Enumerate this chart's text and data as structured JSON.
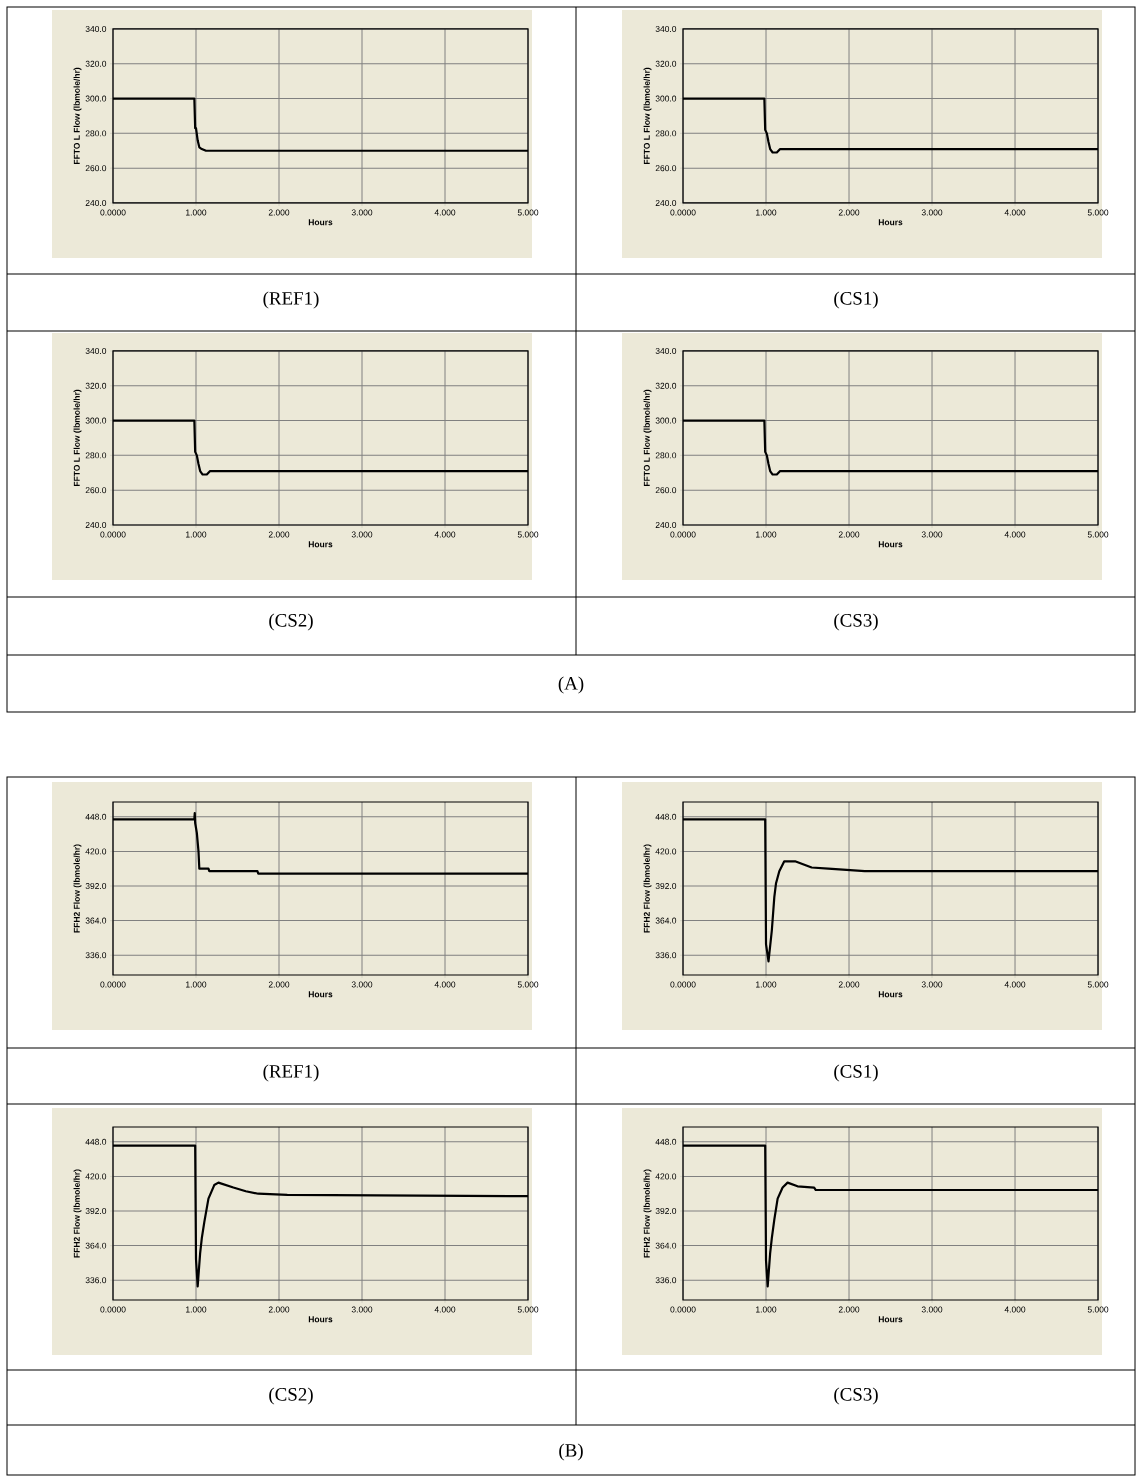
{
  "chart_data": [
    {
      "type": "line",
      "title": "(REF1)",
      "xlabel": "Hours",
      "ylabel": "FFTO L Flow (lbmole/hr)",
      "grid": true,
      "xlim": [
        0,
        5
      ],
      "ylim": [
        240,
        340
      ],
      "xticks": [
        {
          "value": 0,
          "label": "0.0000"
        },
        {
          "value": 1,
          "label": "1.000"
        },
        {
          "value": 2,
          "label": "2.000"
        },
        {
          "value": 3,
          "label": "3.000"
        },
        {
          "value": 4,
          "label": "4.000"
        },
        {
          "value": 5,
          "label": "5.000"
        }
      ],
      "yticks": [
        {
          "value": 240,
          "label": "240.0"
        },
        {
          "value": 260,
          "label": "260.0"
        },
        {
          "value": 280,
          "label": "280.0"
        },
        {
          "value": 300,
          "label": "300.0"
        },
        {
          "value": 320,
          "label": "320.0"
        },
        {
          "value": 340,
          "label": "340.0"
        }
      ],
      "series": [
        {
          "color": "#000000",
          "x": [
            0,
            0.98,
            0.99,
            1.0,
            1.02,
            1.04,
            1.07,
            1.12,
            5
          ],
          "values": [
            300,
            300,
            283,
            283,
            276,
            272,
            271,
            270,
            270
          ]
        }
      ]
    },
    {
      "type": "line",
      "title": "(CS1)",
      "xlabel": "Hours",
      "ylabel": "FFTO L Flow (lbmole/hr)",
      "grid": true,
      "xlim": [
        0,
        5
      ],
      "ylim": [
        240,
        340
      ],
      "xticks": [
        {
          "value": 0,
          "label": "0.0000"
        },
        {
          "value": 1,
          "label": "1.000"
        },
        {
          "value": 2,
          "label": "2.000"
        },
        {
          "value": 3,
          "label": "3.000"
        },
        {
          "value": 4,
          "label": "4.000"
        },
        {
          "value": 5,
          "label": "5.000"
        }
      ],
      "yticks": [
        {
          "value": 240,
          "label": "240.0"
        },
        {
          "value": 260,
          "label": "260.0"
        },
        {
          "value": 280,
          "label": "280.0"
        },
        {
          "value": 300,
          "label": "300.0"
        },
        {
          "value": 320,
          "label": "320.0"
        },
        {
          "value": 340,
          "label": "340.0"
        }
      ],
      "series": [
        {
          "color": "#000000",
          "x": [
            0,
            0.98,
            0.99,
            1.01,
            1.03,
            1.05,
            1.08,
            1.13,
            1.17,
            5
          ],
          "values": [
            300,
            300,
            282,
            280,
            275,
            271,
            269,
            269,
            271,
            271
          ]
        }
      ]
    },
    {
      "type": "line",
      "title": "(CS2)",
      "xlabel": "Hours",
      "ylabel": "FFTO L Flow (lbmole/hr)",
      "grid": true,
      "xlim": [
        0,
        5
      ],
      "ylim": [
        240,
        340
      ],
      "xticks": [
        {
          "value": 0,
          "label": "0.0000"
        },
        {
          "value": 1,
          "label": "1.000"
        },
        {
          "value": 2,
          "label": "2.000"
        },
        {
          "value": 3,
          "label": "3.000"
        },
        {
          "value": 4,
          "label": "4.000"
        },
        {
          "value": 5,
          "label": "5.000"
        }
      ],
      "yticks": [
        {
          "value": 240,
          "label": "240.0"
        },
        {
          "value": 260,
          "label": "260.0"
        },
        {
          "value": 280,
          "label": "280.0"
        },
        {
          "value": 300,
          "label": "300.0"
        },
        {
          "value": 320,
          "label": "320.0"
        },
        {
          "value": 340,
          "label": "340.0"
        }
      ],
      "series": [
        {
          "color": "#000000",
          "x": [
            0,
            0.98,
            0.99,
            1.01,
            1.03,
            1.05,
            1.08,
            1.13,
            1.17,
            5
          ],
          "values": [
            300,
            300,
            282,
            280,
            275,
            271,
            269,
            269,
            271,
            271
          ]
        }
      ]
    },
    {
      "type": "line",
      "title": "(CS3)",
      "xlabel": "Hours",
      "ylabel": "FFTO L Flow (lbmole/hr)",
      "grid": true,
      "xlim": [
        0,
        5
      ],
      "ylim": [
        240,
        340
      ],
      "xticks": [
        {
          "value": 0,
          "label": "0.0000"
        },
        {
          "value": 1,
          "label": "1.000"
        },
        {
          "value": 2,
          "label": "2.000"
        },
        {
          "value": 3,
          "label": "3.000"
        },
        {
          "value": 4,
          "label": "4.000"
        },
        {
          "value": 5,
          "label": "5.000"
        }
      ],
      "yticks": [
        {
          "value": 240,
          "label": "240.0"
        },
        {
          "value": 260,
          "label": "260.0"
        },
        {
          "value": 280,
          "label": "280.0"
        },
        {
          "value": 300,
          "label": "300.0"
        },
        {
          "value": 320,
          "label": "320.0"
        },
        {
          "value": 340,
          "label": "340.0"
        }
      ],
      "series": [
        {
          "color": "#000000",
          "x": [
            0,
            0.98,
            0.99,
            1.01,
            1.03,
            1.05,
            1.08,
            1.13,
            1.17,
            5
          ],
          "values": [
            300,
            300,
            282,
            280,
            275,
            271,
            269,
            269,
            271,
            271
          ]
        }
      ],
      "annotations": [
        "(A)"
      ]
    },
    {
      "type": "line",
      "title": "(REF1)",
      "xlabel": "Hours",
      "ylabel": "FFH2 Flow (lbmole/hr)",
      "grid": true,
      "xlim": [
        0,
        5
      ],
      "ylim": [
        320,
        460
      ],
      "xticks": [
        {
          "value": 0,
          "label": "0.0000"
        },
        {
          "value": 1,
          "label": "1.000"
        },
        {
          "value": 2,
          "label": "2.000"
        },
        {
          "value": 3,
          "label": "3.000"
        },
        {
          "value": 4,
          "label": "4.000"
        },
        {
          "value": 5,
          "label": "5.000"
        }
      ],
      "yticks": [
        {
          "value": 336,
          "label": "336.0"
        },
        {
          "value": 364,
          "label": "364.0"
        },
        {
          "value": 392,
          "label": "392.0"
        },
        {
          "value": 420,
          "label": "420.0"
        },
        {
          "value": 448,
          "label": "448.0"
        }
      ],
      "series": [
        {
          "color": "#000000",
          "x": [
            0,
            0.98,
            0.985,
            0.99,
            1.01,
            1.03,
            1.04,
            1.05,
            1.15,
            1.16,
            1.74,
            1.75,
            5
          ],
          "values": [
            446,
            446,
            451,
            443,
            435,
            420,
            406,
            406,
            406,
            404,
            404,
            402,
            402
          ]
        }
      ]
    },
    {
      "type": "line",
      "title": "(CS1)",
      "xlabel": "Hours",
      "ylabel": "FFH2 Flow (lbmole/hr)",
      "grid": true,
      "xlim": [
        0,
        5
      ],
      "ylim": [
        320,
        460
      ],
      "xticks": [
        {
          "value": 0,
          "label": "0.0000"
        },
        {
          "value": 1,
          "label": "1.000"
        },
        {
          "value": 2,
          "label": "2.000"
        },
        {
          "value": 3,
          "label": "3.000"
        },
        {
          "value": 4,
          "label": "4.000"
        },
        {
          "value": 5,
          "label": "5.000"
        }
      ],
      "yticks": [
        {
          "value": 336,
          "label": "336.0"
        },
        {
          "value": 364,
          "label": "364.0"
        },
        {
          "value": 392,
          "label": "392.0"
        },
        {
          "value": 420,
          "label": "420.0"
        },
        {
          "value": 448,
          "label": "448.0"
        }
      ],
      "series": [
        {
          "color": "#000000",
          "x": [
            0,
            0.99,
            1.0,
            1.03,
            1.07,
            1.1,
            1.12,
            1.16,
            1.22,
            1.35,
            1.55,
            1.75,
            2.19,
            5
          ],
          "values": [
            446,
            446,
            345,
            331,
            356,
            383,
            394,
            404,
            412,
            412,
            407,
            406,
            404,
            404
          ]
        }
      ]
    },
    {
      "type": "line",
      "title": "(CS2)",
      "xlabel": "Hours",
      "ylabel": "FFH2 Flow (lbmole/hr)",
      "grid": true,
      "xlim": [
        0,
        5
      ],
      "ylim": [
        320,
        460
      ],
      "xticks": [
        {
          "value": 0,
          "label": "0.0000"
        },
        {
          "value": 1,
          "label": "1.000"
        },
        {
          "value": 2,
          "label": "2.000"
        },
        {
          "value": 3,
          "label": "3.000"
        },
        {
          "value": 4,
          "label": "4.000"
        },
        {
          "value": 5,
          "label": "5.000"
        }
      ],
      "yticks": [
        {
          "value": 336,
          "label": "336.0"
        },
        {
          "value": 364,
          "label": "364.0"
        },
        {
          "value": 392,
          "label": "392.0"
        },
        {
          "value": 420,
          "label": "420.0"
        },
        {
          "value": 448,
          "label": "448.0"
        }
      ],
      "series": [
        {
          "color": "#000000",
          "x": [
            0,
            0.99,
            1.0,
            1.02,
            1.05,
            1.07,
            1.1,
            1.15,
            1.22,
            1.27,
            1.45,
            1.6,
            1.75,
            2.1,
            5
          ],
          "values": [
            445,
            445,
            353,
            331,
            358,
            370,
            383,
            402,
            413,
            415,
            411,
            408,
            406,
            405,
            404
          ]
        }
      ]
    },
    {
      "type": "line",
      "title": "(CS3)",
      "xlabel": "Hours",
      "ylabel": "FFH2 Flow (lbmole/hr)",
      "grid": true,
      "xlim": [
        0,
        5
      ],
      "ylim": [
        320,
        460
      ],
      "xticks": [
        {
          "value": 0,
          "label": "0.0000"
        },
        {
          "value": 1,
          "label": "1.000"
        },
        {
          "value": 2,
          "label": "2.000"
        },
        {
          "value": 3,
          "label": "3.000"
        },
        {
          "value": 4,
          "label": "4.000"
        },
        {
          "value": 5,
          "label": "5.000"
        }
      ],
      "yticks": [
        {
          "value": 336,
          "label": "336.0"
        },
        {
          "value": 364,
          "label": "364.0"
        },
        {
          "value": 392,
          "label": "392.0"
        },
        {
          "value": 420,
          "label": "420.0"
        },
        {
          "value": 448,
          "label": "448.0"
        }
      ],
      "series": [
        {
          "color": "#000000",
          "x": [
            0,
            0.99,
            1.0,
            1.02,
            1.05,
            1.07,
            1.1,
            1.14,
            1.2,
            1.26,
            1.38,
            1.58,
            1.6,
            5
          ],
          "values": [
            445,
            445,
            352,
            331,
            358,
            370,
            385,
            402,
            411,
            415,
            412,
            411,
            409,
            409
          ]
        }
      ],
      "annotations": [
        "(B)"
      ]
    }
  ]
}
